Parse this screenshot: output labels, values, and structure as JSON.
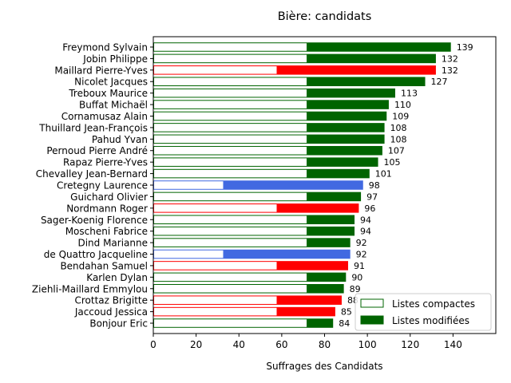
{
  "chart_data": {
    "type": "bar",
    "orientation": "horizontal",
    "stacked": true,
    "title": "Bière: candidats",
    "xlabel": "Suffrages des Candidats",
    "ylabel": "",
    "xlim": [
      0,
      160
    ],
    "xticks": [
      0,
      20,
      40,
      60,
      80,
      100,
      120,
      140
    ],
    "grid": false,
    "legend_position": "lower-right",
    "legend": [
      {
        "label": "Listes compactes",
        "style": "outline",
        "color": "#006400"
      },
      {
        "label": "Listes modifiées",
        "style": "filled",
        "color": "#006400"
      }
    ],
    "categories": [
      "Freymond Sylvain",
      "Jobin Philippe",
      "Maillard Pierre-Yves",
      "Nicolet Jacques",
      "Treboux Maurice",
      "Buffat Michaël",
      "Cornamusaz Alain",
      "Thuillard Jean-François",
      "Pahud Yvan",
      "Pernoud Pierre André",
      "Rapaz Pierre-Yves",
      "Chevalley Jean-Bernard",
      "Cretegny Laurence",
      "Guichard Olivier",
      "Nordmann Roger",
      "Sager-Koenig Florence",
      "Moscheni Fabrice",
      "Dind Marianne",
      "de Quattro Jacqueline",
      "Bendahan Samuel",
      "Karlen Dylan",
      "Ziehli-Maillard Emmylou",
      "Crottaz Brigitte",
      "Jaccoud Jessica",
      "Bonjour Eric"
    ],
    "totals": [
      139,
      132,
      132,
      127,
      113,
      110,
      109,
      108,
      108,
      107,
      105,
      101,
      98,
      97,
      96,
      94,
      94,
      92,
      92,
      91,
      90,
      89,
      88,
      85,
      84
    ],
    "compact": [
      72,
      72,
      58,
      72,
      72,
      72,
      72,
      72,
      72,
      72,
      72,
      72,
      33,
      72,
      58,
      72,
      72,
      72,
      33,
      58,
      72,
      72,
      58,
      58,
      72
    ],
    "colors": [
      "#006400",
      "#006400",
      "#ff0000",
      "#006400",
      "#006400",
      "#006400",
      "#006400",
      "#006400",
      "#006400",
      "#006400",
      "#006400",
      "#006400",
      "#4169e1",
      "#006400",
      "#ff0000",
      "#006400",
      "#006400",
      "#006400",
      "#4169e1",
      "#ff0000",
      "#006400",
      "#006400",
      "#ff0000",
      "#ff0000",
      "#006400"
    ]
  }
}
